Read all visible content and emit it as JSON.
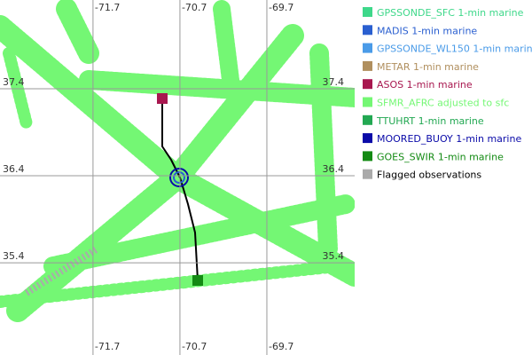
{
  "map": {
    "lon_range": [
      -72.77,
      -68.69
    ],
    "lat_range": [
      38.42,
      34.34
    ],
    "lon_ticks": [
      -71.7,
      -70.7,
      -69.7
    ],
    "lat_ticks": [
      37.4,
      36.4,
      35.4
    ],
    "legend": [
      {
        "label": "GPSSONDE_SFC 1-min marine",
        "color": "#3ed88a"
      },
      {
        "label": "MADIS 1-min marine",
        "color": "#2a5fd0"
      },
      {
        "label": "GPSSONDE_WL150 1-min marine",
        "color": "#4a9be8"
      },
      {
        "label": "METAR 1-min marine",
        "color": "#b08f5e"
      },
      {
        "label": "ASOS 1-min marine",
        "color": "#a8174f"
      },
      {
        "label": "SFMR_AFRC adjusted to sfc",
        "color": "#74f774"
      },
      {
        "label": "TTUHRT 1-min marine",
        "color": "#22a852"
      },
      {
        "label": "MOORED_BUOY 1-min marine",
        "color": "#0a0aa8"
      },
      {
        "label": "GOES_SWIR 1-min marine",
        "color": "#138a13"
      },
      {
        "label": "Flagged observations",
        "color": "#aaaaaa"
      }
    ]
  }
}
